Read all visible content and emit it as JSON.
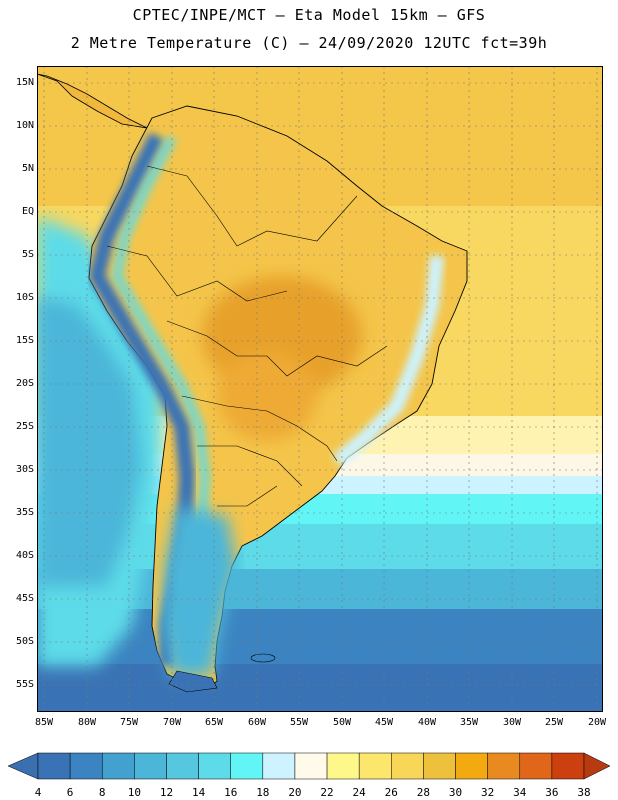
{
  "header": {
    "line1": "CPTEC/INPE/MCT –  Eta Model 15km – GFS",
    "line2": "2 Metre Temperature (C) – 24/09/2020 12UTC fct=39h"
  },
  "map": {
    "lat_labels": [
      "15N",
      "10N",
      "5N",
      "EQ",
      "5S",
      "10S",
      "15S",
      "20S",
      "25S",
      "30S",
      "35S",
      "40S",
      "45S",
      "50S",
      "55S"
    ],
    "lon_labels": [
      "85W",
      "80W",
      "75W",
      "70W",
      "65W",
      "60W",
      "55W",
      "50W",
      "45W",
      "40W",
      "35W",
      "30W",
      "25W",
      "20W"
    ]
  },
  "colorbar": {
    "labels": [
      "4",
      "6",
      "8",
      "10",
      "12",
      "14",
      "16",
      "18",
      "20",
      "22",
      "24",
      "26",
      "28",
      "30",
      "32",
      "34",
      "36",
      "38"
    ],
    "colors": [
      "#3a73b5",
      "#3b84c1",
      "#43a1cf",
      "#4cb6d9",
      "#55c8e0",
      "#5ddbe8",
      "#61f5f5",
      "#ccf3ff",
      "#fffaea",
      "#fef88a",
      "#fce66c",
      "#f8d658",
      "#eec13c",
      "#f2aa10",
      "#e98a20",
      "#e0661a",
      "#cc3f0e"
    ],
    "low_arrow_color": "#3a6fb0",
    "high_arrow_color": "#b83a10"
  }
}
